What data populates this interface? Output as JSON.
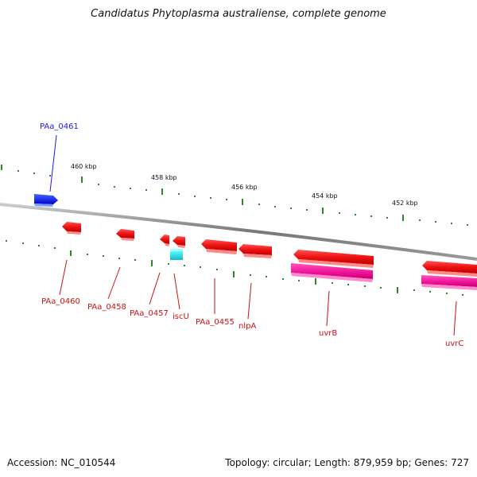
{
  "title": "Candidatus Phytoplasma australiense, complete genome",
  "footer": {
    "accession": "Accession: NC_010544",
    "stats": "Topology: circular; Length: 879,959 bp; Genes: 727"
  },
  "ruler_labels": [
    "460 kbp",
    "458 kbp",
    "456 kbp",
    "454 kbp",
    "452 kbp"
  ],
  "genes": {
    "PAa_0461": "PAa_0461",
    "PAa_0460": "PAa_0460",
    "PAa_0458": "PAa_0458",
    "PAa_0457": "PAa_0457",
    "iscU": "iscU",
    "PAa_0455": "PAa_0455",
    "nlpA": "nlpA",
    "uvrB": "uvrB",
    "uvrC": "uvrC"
  },
  "colors": {
    "forward_gene": "#1a1ae6",
    "reverse_gene": "#ee1111",
    "rrna_like": "#22dddd",
    "protein_domain": "#ee2299",
    "backbone": "#888888",
    "ticks": "#2a8a2a"
  }
}
